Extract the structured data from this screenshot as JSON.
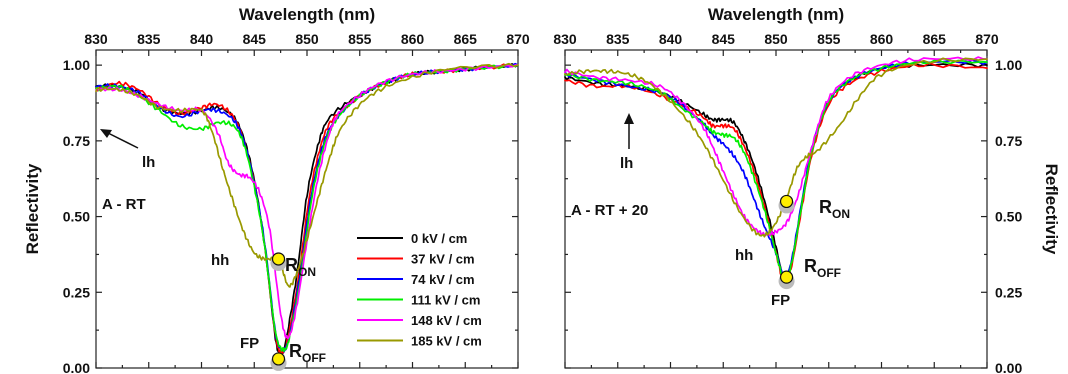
{
  "colors": {
    "s0": "#000000",
    "s1": "#ff0000",
    "s2": "#0000ff",
    "s3": "#00ee00",
    "s4": "#ff00ff",
    "s5": "#999900",
    "marker": "#ffee00"
  },
  "chart_data": [
    {
      "type": "line",
      "panel": "left",
      "xlabel": "Wavelength (nm)",
      "ylabel": "Reflectivity",
      "xlim": [
        830,
        870
      ],
      "ylim": [
        0.0,
        1.05
      ],
      "x_ticks": [
        "830",
        "835",
        "840",
        "845",
        "850",
        "855",
        "860",
        "865",
        "870"
      ],
      "y_ticks": [
        "0.00",
        "0.25",
        "0.50",
        "0.75",
        "1.00"
      ],
      "grid": false,
      "legend_position": "lower-right",
      "panel_label": "A - RT",
      "annotations": {
        "lh": "lh",
        "hh": "hh",
        "fp": "FP",
        "r_on": "R",
        "r_on_sub": "ON",
        "r_off": "R",
        "r_off_sub": "OFF"
      },
      "markers": [
        {
          "label": "R_ON",
          "x": 847.3,
          "y": 0.36
        },
        {
          "label": "R_OFF",
          "x": 847.3,
          "y": 0.03
        }
      ],
      "series": [
        {
          "name": "0 kV / cm",
          "x": [
            830,
            832,
            834,
            836,
            838,
            840,
            841.5,
            843,
            844,
            845,
            846,
            847,
            847.5,
            848,
            849,
            850,
            851,
            852,
            854,
            856,
            858,
            860,
            863,
            866,
            870
          ],
          "y": [
            0.93,
            0.93,
            0.91,
            0.86,
            0.84,
            0.85,
            0.86,
            0.83,
            0.76,
            0.62,
            0.4,
            0.1,
            0.05,
            0.09,
            0.3,
            0.57,
            0.73,
            0.82,
            0.88,
            0.92,
            0.95,
            0.97,
            0.98,
            0.99,
            1.0
          ]
        },
        {
          "name": "37 kV / cm",
          "x": [
            830,
            832,
            834,
            836,
            838,
            840,
            841.5,
            843,
            844,
            845,
            846,
            847,
            847.6,
            848.2,
            849.2,
            850.2,
            851.2,
            852.2,
            854,
            856,
            858,
            860,
            863,
            866,
            870
          ],
          "y": [
            0.92,
            0.94,
            0.92,
            0.87,
            0.84,
            0.86,
            0.87,
            0.83,
            0.75,
            0.61,
            0.4,
            0.11,
            0.05,
            0.1,
            0.3,
            0.56,
            0.72,
            0.81,
            0.87,
            0.92,
            0.95,
            0.97,
            0.98,
            0.99,
            1.0
          ]
        },
        {
          "name": "74 kV / cm",
          "x": [
            830,
            832,
            834,
            836,
            838,
            840,
            841.5,
            843,
            844,
            845,
            846,
            847,
            847.7,
            848.3,
            849.3,
            850.3,
            851.3,
            852.3,
            854,
            856,
            858,
            860,
            863,
            866,
            870
          ],
          "y": [
            0.93,
            0.93,
            0.91,
            0.86,
            0.83,
            0.85,
            0.85,
            0.82,
            0.75,
            0.61,
            0.41,
            0.12,
            0.06,
            0.1,
            0.3,
            0.55,
            0.71,
            0.8,
            0.87,
            0.92,
            0.95,
            0.97,
            0.98,
            0.99,
            1.0
          ]
        },
        {
          "name": "111 kV / cm",
          "x": [
            830,
            832,
            834,
            836,
            838,
            840,
            841.5,
            843,
            844,
            845,
            846,
            847,
            847.8,
            848.4,
            849.4,
            850.4,
            851.4,
            852.4,
            854,
            856,
            858,
            860,
            863,
            866,
            870
          ],
          "y": [
            0.92,
            0.93,
            0.9,
            0.85,
            0.8,
            0.79,
            0.81,
            0.8,
            0.74,
            0.6,
            0.4,
            0.12,
            0.06,
            0.11,
            0.3,
            0.55,
            0.71,
            0.8,
            0.87,
            0.92,
            0.95,
            0.97,
            0.98,
            0.99,
            1.0
          ]
        },
        {
          "name": "148 kV / cm",
          "x": [
            830,
            832,
            834,
            836,
            838,
            840,
            841.5,
            842.5,
            843.5,
            844.5,
            845.5,
            846.5,
            847.5,
            848.2,
            849,
            850,
            851,
            852,
            853,
            855,
            857,
            860,
            863,
            866,
            870
          ],
          "y": [
            0.92,
            0.92,
            0.9,
            0.87,
            0.85,
            0.85,
            0.78,
            0.68,
            0.64,
            0.63,
            0.58,
            0.45,
            0.18,
            0.1,
            0.2,
            0.42,
            0.62,
            0.76,
            0.84,
            0.9,
            0.94,
            0.97,
            0.98,
            0.99,
            1.0
          ]
        },
        {
          "name": "185 kV / cm",
          "x": [
            830,
            832,
            834,
            836,
            838,
            840,
            841,
            842,
            843,
            844,
            845,
            846,
            847,
            847.6,
            848.3,
            849.2,
            850.2,
            851.2,
            852.2,
            853.2,
            855,
            857,
            860,
            864,
            870
          ],
          "y": [
            0.92,
            0.92,
            0.9,
            0.86,
            0.85,
            0.85,
            0.78,
            0.66,
            0.55,
            0.45,
            0.38,
            0.36,
            0.36,
            0.33,
            0.27,
            0.33,
            0.45,
            0.58,
            0.7,
            0.79,
            0.87,
            0.92,
            0.96,
            0.99,
            1.0
          ]
        }
      ]
    },
    {
      "type": "line",
      "panel": "right",
      "xlabel": "Wavelength (nm)",
      "ylabel": "Reflectivity",
      "xlim": [
        830,
        870
      ],
      "ylim": [
        0.0,
        1.05
      ],
      "x_ticks": [
        "830",
        "835",
        "840",
        "845",
        "850",
        "855",
        "860",
        "865",
        "870"
      ],
      "y_ticks": [
        "0.00",
        "0.25",
        "0.50",
        "0.75",
        "1.00"
      ],
      "grid": false,
      "panel_label": "A - RT + 20",
      "annotations": {
        "lh": "lh",
        "hh": "hh",
        "fp": "FP",
        "r_on": "R",
        "r_on_sub": "ON",
        "r_off": "R",
        "r_off_sub": "OFF"
      },
      "markers": [
        {
          "label": "R_ON",
          "x": 851.0,
          "y": 0.55
        },
        {
          "label": "R_OFF",
          "x": 851.0,
          "y": 0.3
        }
      ],
      "series": [
        {
          "name": "0 kV / cm",
          "x": [
            830,
            833,
            836,
            839,
            841,
            843,
            844,
            845,
            846,
            847,
            848,
            849,
            850,
            850.8,
            851.5,
            852.5,
            853.5,
            855,
            857,
            860,
            864,
            870
          ],
          "y": [
            0.96,
            0.94,
            0.93,
            0.91,
            0.88,
            0.84,
            0.82,
            0.82,
            0.81,
            0.75,
            0.66,
            0.54,
            0.4,
            0.29,
            0.35,
            0.55,
            0.73,
            0.88,
            0.95,
            0.99,
            1.0,
            1.0
          ]
        },
        {
          "name": "37 kV / cm",
          "x": [
            830,
            833,
            836,
            839,
            841,
            843,
            844,
            845,
            846,
            847,
            848,
            849,
            850,
            850.8,
            851.5,
            852.5,
            853.5,
            855,
            857,
            860,
            864,
            870
          ],
          "y": [
            0.95,
            0.93,
            0.93,
            0.9,
            0.87,
            0.83,
            0.8,
            0.8,
            0.79,
            0.73,
            0.64,
            0.52,
            0.38,
            0.28,
            0.34,
            0.54,
            0.72,
            0.87,
            0.94,
            0.98,
            1.0,
            0.99
          ]
        },
        {
          "name": "74 kV / cm",
          "x": [
            830,
            833,
            836,
            839,
            841,
            843,
            844,
            845,
            846,
            847,
            848,
            849,
            850,
            850.8,
            851.5,
            852.5,
            853.5,
            855,
            857,
            860,
            864,
            870
          ],
          "y": [
            0.97,
            0.95,
            0.93,
            0.91,
            0.87,
            0.81,
            0.77,
            0.74,
            0.7,
            0.64,
            0.55,
            0.46,
            0.38,
            0.3,
            0.36,
            0.56,
            0.74,
            0.88,
            0.95,
            0.99,
            1.01,
            1.01
          ]
        },
        {
          "name": "111 kV / cm",
          "x": [
            830,
            833,
            836,
            839,
            841,
            843,
            844,
            845,
            846,
            847,
            848,
            849,
            850,
            850.8,
            851.5,
            852.5,
            853.5,
            855,
            857,
            860,
            864,
            870
          ],
          "y": [
            0.97,
            0.95,
            0.94,
            0.91,
            0.86,
            0.81,
            0.78,
            0.77,
            0.76,
            0.71,
            0.62,
            0.51,
            0.38,
            0.29,
            0.35,
            0.55,
            0.73,
            0.88,
            0.95,
            0.99,
            1.01,
            1.01
          ]
        },
        {
          "name": "148 kV / cm",
          "x": [
            830,
            833,
            836,
            839,
            841,
            843,
            844,
            845,
            846,
            847,
            848,
            849,
            850,
            851,
            852,
            853,
            854,
            855,
            857,
            860,
            864,
            870
          ],
          "y": [
            0.98,
            0.96,
            0.95,
            0.93,
            0.88,
            0.8,
            0.73,
            0.65,
            0.57,
            0.5,
            0.46,
            0.44,
            0.45,
            0.48,
            0.56,
            0.68,
            0.8,
            0.89,
            0.96,
            1.0,
            1.02,
            1.02
          ]
        },
        {
          "name": "185 kV / cm",
          "x": [
            830,
            832,
            834,
            836,
            838,
            840,
            842,
            843.5,
            845,
            846.5,
            848,
            849,
            850,
            851,
            852,
            853,
            854,
            856,
            858,
            860,
            864,
            870
          ],
          "y": [
            0.97,
            0.98,
            0.98,
            0.97,
            0.94,
            0.88,
            0.8,
            0.72,
            0.62,
            0.52,
            0.45,
            0.44,
            0.48,
            0.56,
            0.66,
            0.7,
            0.72,
            0.8,
            0.9,
            0.97,
            1.01,
            1.02
          ]
        }
      ]
    }
  ]
}
